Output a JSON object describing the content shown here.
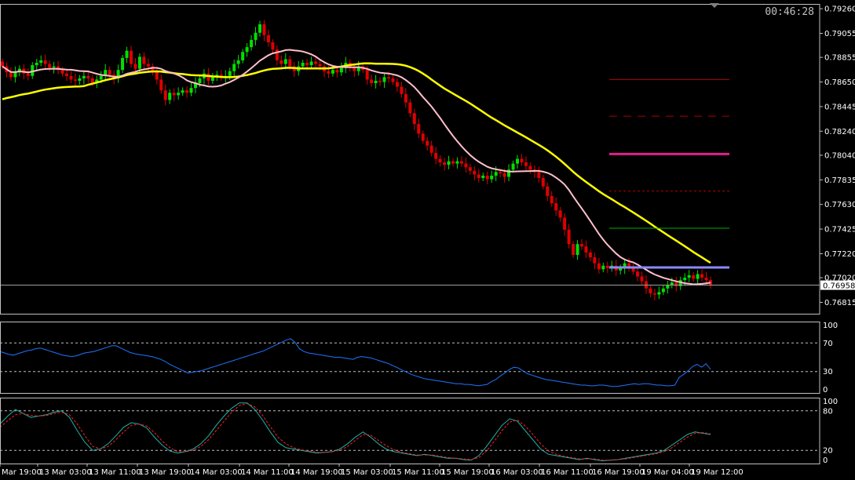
{
  "header": {
    "clock": "00:46:28"
  },
  "colors": {
    "background": "#000000",
    "frame": "#c0c0c0",
    "bull": "#00e000",
    "bear": "#e00000",
    "ma_fast": "#ffc0cb",
    "ma_slow": "#ffff00",
    "rsi_line": "#1e74ff",
    "stoch_main": "#20b2aa",
    "stoch_signal": "#ff2020",
    "level_dark_red": "#b00000",
    "level_magenta": "#e0208a",
    "level_green": "#00b000",
    "level_blue": "#8a8aff"
  },
  "chart_data": [
    {
      "type": "candlestick",
      "ylim": [
        0.7672,
        0.793
      ],
      "y_ticks": [
        "0.79260",
        "0.79055",
        "0.78855",
        "0.78650",
        "0.78445",
        "0.78240",
        "0.78040",
        "0.77835",
        "0.77630",
        "0.77425",
        "0.77220",
        "0.77020",
        "0.76815"
      ],
      "current_price": "0.76958",
      "x_ticks": [
        "Mar 19:00",
        "13 Mar 03:00",
        "13 Mar 11:00",
        "13 Mar 19:00",
        "14 Mar 03:00",
        "14 Mar 11:00",
        "14 Mar 19:00",
        "15 Mar 03:00",
        "15 Mar 11:00",
        "15 Mar 19:00",
        "16 Mar 03:00",
        "16 Mar 11:00",
        "16 Mar 19:00",
        "19 Mar 04:00",
        "19 Mar 12:00"
      ],
      "closes": [
        0.7878,
        0.7873,
        0.7869,
        0.7873,
        0.7876,
        0.7872,
        0.787,
        0.7879,
        0.7881,
        0.7883,
        0.788,
        0.7877,
        0.7878,
        0.7875,
        0.7872,
        0.787,
        0.7867,
        0.7866,
        0.7868,
        0.787,
        0.7868,
        0.7864,
        0.7867,
        0.787,
        0.7875,
        0.7871,
        0.7868,
        0.7875,
        0.7885,
        0.7891,
        0.788,
        0.7876,
        0.7886,
        0.788,
        0.7878,
        0.7873,
        0.7867,
        0.7858,
        0.785,
        0.7856,
        0.7854,
        0.7856,
        0.7858,
        0.7856,
        0.786,
        0.7864,
        0.7868,
        0.7872,
        0.7866,
        0.787,
        0.7871,
        0.7869,
        0.787,
        0.7874,
        0.788,
        0.7883,
        0.789,
        0.7894,
        0.79,
        0.7906,
        0.7913,
        0.7904,
        0.7898,
        0.7892,
        0.7883,
        0.788,
        0.7884,
        0.7878,
        0.7874,
        0.7878,
        0.7881,
        0.7879,
        0.7882,
        0.788,
        0.7878,
        0.7874,
        0.7872,
        0.7875,
        0.7873,
        0.7877,
        0.7881,
        0.7877,
        0.7874,
        0.7878,
        0.7875,
        0.7867,
        0.7864,
        0.7866,
        0.7865,
        0.7869,
        0.7868,
        0.7865,
        0.7861,
        0.7855,
        0.7848,
        0.7839,
        0.783,
        0.7822,
        0.7816,
        0.7812,
        0.7806,
        0.7801,
        0.7798,
        0.7796,
        0.7799,
        0.7797,
        0.7799,
        0.7797,
        0.7794,
        0.7791,
        0.7788,
        0.7785,
        0.7787,
        0.7784,
        0.7787,
        0.779,
        0.7789,
        0.7786,
        0.7792,
        0.7797,
        0.7801,
        0.7798,
        0.7795,
        0.7792,
        0.779,
        0.7785,
        0.7778,
        0.777,
        0.7764,
        0.7758,
        0.7752,
        0.7742,
        0.773,
        0.7721,
        0.773,
        0.7728,
        0.7723,
        0.7719,
        0.7714,
        0.7709,
        0.7712,
        0.771,
        0.7712,
        0.7708,
        0.771,
        0.7714,
        0.7711,
        0.7707,
        0.7703,
        0.7699,
        0.7693,
        0.7689,
        0.7688,
        0.769,
        0.7693,
        0.7696,
        0.7698,
        0.7695,
        0.77,
        0.7702,
        0.7704,
        0.7701,
        0.7705,
        0.7702,
        0.77,
        0.7696
      ]
    },
    {
      "type": "line",
      "ylim": [
        0,
        100
      ],
      "y_ticks": [
        "100",
        "70",
        "30",
        "0"
      ],
      "levels": [
        70,
        30
      ],
      "series": [
        {
          "values": [
            58,
            56,
            54,
            53,
            55,
            57,
            59,
            60,
            62,
            63,
            61,
            59,
            57,
            55,
            53,
            52,
            51,
            52,
            54,
            56,
            57,
            58,
            60,
            62,
            64,
            66,
            66,
            63,
            60,
            57,
            55,
            54,
            53,
            52,
            51,
            49,
            47,
            44,
            40,
            37,
            34,
            31,
            28,
            29,
            30,
            31,
            33,
            35,
            37,
            39,
            41,
            43,
            45,
            47,
            49,
            51,
            53,
            55,
            57,
            59,
            62,
            65,
            68,
            71,
            74,
            76,
            71,
            62,
            58,
            56,
            55,
            54,
            53,
            52,
            51,
            50,
            50,
            49,
            48,
            47,
            50,
            51,
            50,
            49,
            47,
            45,
            43,
            41,
            38,
            35,
            32,
            29,
            26,
            24,
            22,
            20,
            19,
            18,
            17,
            16,
            15,
            14,
            13,
            13,
            12,
            12,
            11,
            10,
            11,
            12,
            16,
            19,
            24,
            28,
            33,
            36,
            35,
            31,
            27,
            25,
            23,
            21,
            19,
            18,
            17,
            16,
            15,
            14,
            13,
            12,
            11,
            11,
            10,
            10,
            11,
            11,
            10,
            9,
            9,
            10,
            11,
            12,
            13,
            12,
            13,
            13,
            12,
            11,
            11,
            10,
            10,
            11,
            22,
            26,
            31,
            37,
            40,
            36,
            41,
            33
          ]
        }
      ]
    },
    {
      "type": "line",
      "ylim": [
        0,
        100
      ],
      "y_ticks": [
        "100",
        "80",
        "20",
        "0"
      ],
      "levels": [
        80,
        20
      ],
      "series": [
        {
          "values": [
            60,
            72,
            82,
            76,
            70,
            72,
            74,
            78,
            80,
            70,
            50,
            32,
            20,
            22,
            30,
            42,
            55,
            62,
            60,
            54,
            40,
            28,
            19,
            16,
            18,
            22,
            30,
            42,
            58,
            72,
            84,
            92,
            92,
            82,
            66,
            48,
            32,
            24,
            22,
            20,
            18,
            16,
            17,
            18,
            22,
            30,
            40,
            48,
            40,
            30,
            22,
            18,
            16,
            14,
            12,
            14,
            12,
            10,
            8,
            8,
            6,
            5,
            12,
            26,
            42,
            58,
            68,
            64,
            50,
            36,
            22,
            14,
            12,
            10,
            8,
            6,
            8,
            6,
            4,
            5,
            6,
            8,
            10,
            12,
            14,
            16,
            20,
            28,
            36,
            44,
            48,
            46,
            44
          ]
        },
        {
          "values": [
            55,
            65,
            74,
            76,
            73,
            72,
            73,
            76,
            78,
            74,
            60,
            42,
            26,
            22,
            26,
            36,
            48,
            58,
            60,
            57,
            47,
            34,
            24,
            18,
            18,
            20,
            26,
            36,
            50,
            64,
            78,
            88,
            91,
            86,
            73,
            56,
            40,
            30,
            24,
            21,
            19,
            17,
            17,
            18,
            20,
            26,
            35,
            44,
            43,
            35,
            27,
            21,
            17,
            15,
            13,
            13,
            13,
            11,
            9,
            8,
            7,
            6,
            9,
            19,
            34,
            50,
            63,
            66,
            57,
            44,
            30,
            19,
            14,
            11,
            9,
            7,
            7,
            7,
            5,
            5,
            6,
            7,
            9,
            11,
            13,
            15,
            18,
            24,
            32,
            40,
            46,
            47,
            45
          ]
        }
      ]
    }
  ]
}
